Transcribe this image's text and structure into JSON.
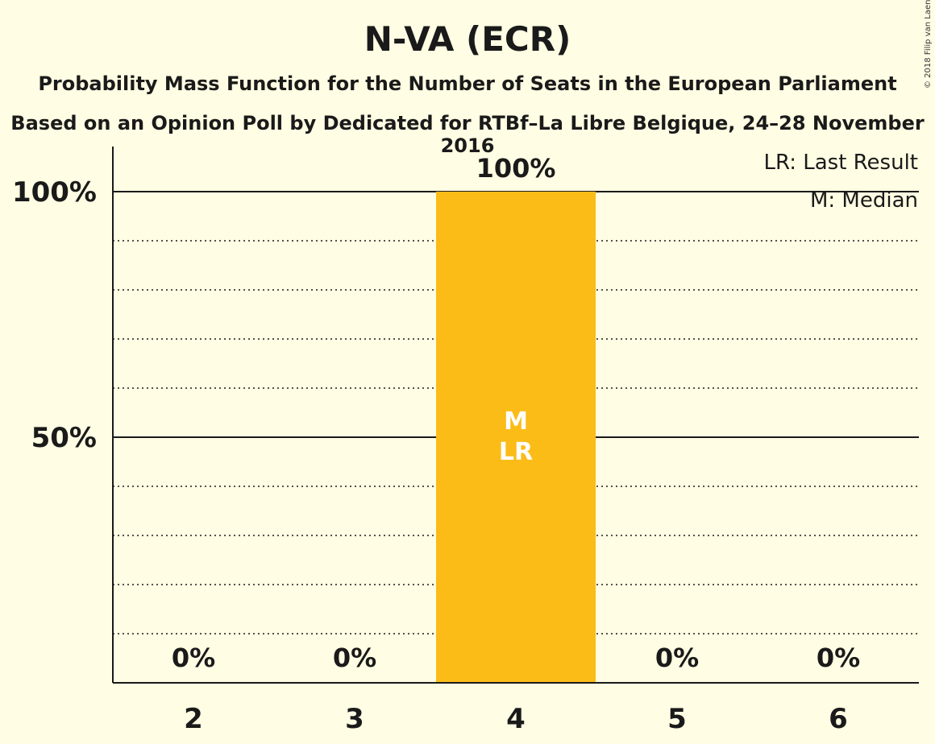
{
  "title": "N-VA (ECR)",
  "subtitle": "Probability Mass Function for the Number of Seats in the European Parliament",
  "subtitle2": "Based on an Opinion Poll by Dedicated for RTBf–La Libre Belgique, 24–28 November 2016",
  "copyright": "© 2018 Filip van Laenen",
  "legend": [
    "LR: Last Result",
    "M: Median"
  ],
  "colors": {
    "bar": "#FBBC18",
    "background": "#FFFDE3",
    "text": "#1a1a1a"
  },
  "chart_data": {
    "type": "bar",
    "categories": [
      "2",
      "3",
      "4",
      "5",
      "6"
    ],
    "values": [
      0,
      0,
      100,
      0,
      0
    ],
    "value_labels": [
      "0%",
      "0%",
      "100%",
      "0%",
      "0%"
    ],
    "ylim": [
      0,
      100
    ],
    "yticks": [
      50,
      100
    ],
    "ytick_labels": [
      "50%",
      "100%"
    ],
    "minor_gridlines": [
      10,
      20,
      30,
      40,
      60,
      70,
      80,
      90
    ],
    "bar_annotations": {
      "4": [
        "M",
        "LR"
      ]
    },
    "legend_placement": "top-right",
    "xlabel": "",
    "ylabel": ""
  }
}
